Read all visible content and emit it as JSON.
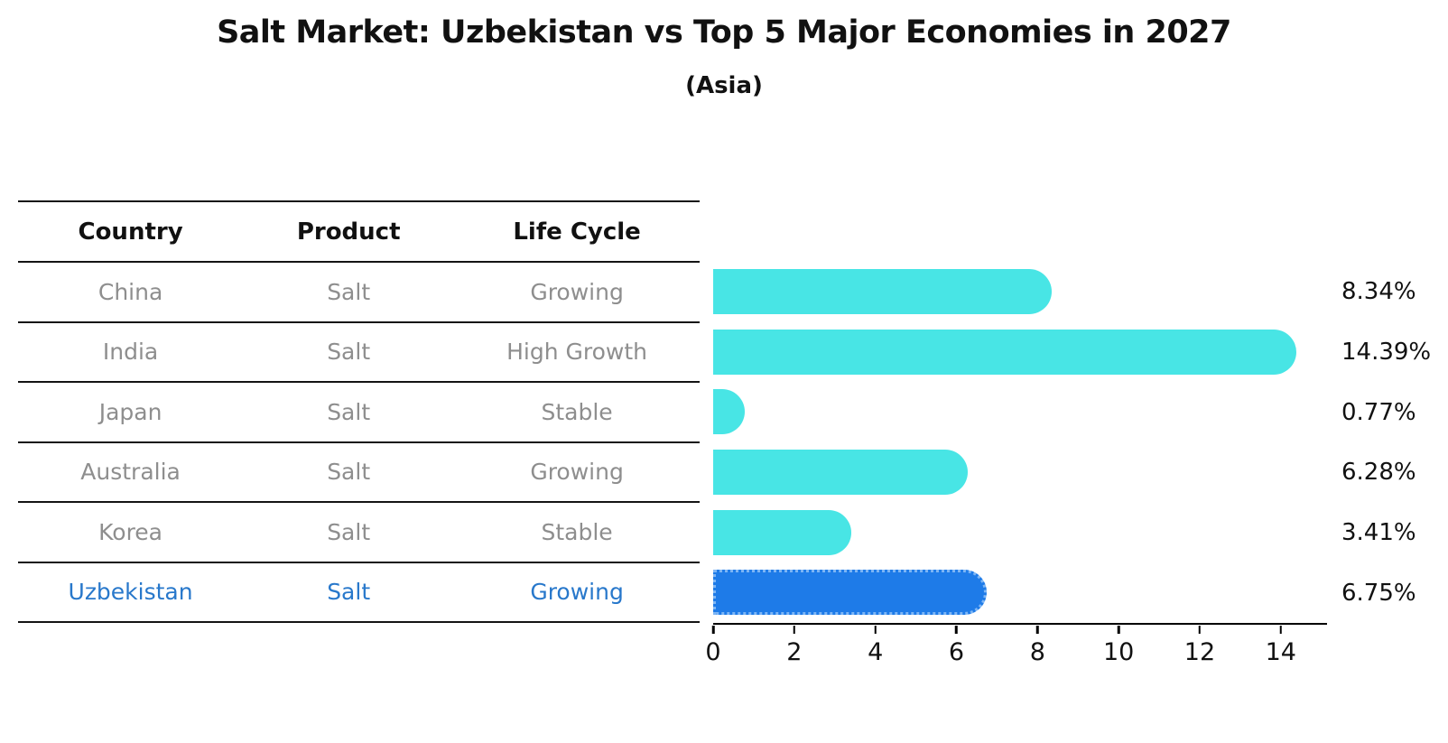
{
  "table": {
    "headers": [
      "Country",
      "Product",
      "Life Cycle"
    ],
    "rows": [
      {
        "country": "China",
        "product": "Salt",
        "life_cycle": "Growing",
        "highlight": false
      },
      {
        "country": "India",
        "product": "Salt",
        "life_cycle": "High Growth",
        "highlight": false
      },
      {
        "country": "Japan",
        "product": "Salt",
        "life_cycle": "Stable",
        "highlight": false
      },
      {
        "country": "Australia",
        "product": "Salt",
        "life_cycle": "Growing",
        "highlight": false
      },
      {
        "country": "Korea",
        "product": "Salt",
        "life_cycle": "Stable",
        "highlight": false
      },
      {
        "country": "Uzbekistan",
        "product": "Salt",
        "life_cycle": "Growing",
        "highlight": true
      }
    ]
  },
  "chart_data": {
    "type": "bar",
    "orientation": "horizontal",
    "title": "Salt Market: Uzbekistan vs Top 5 Major Economies in 2027",
    "subtitle": "(Asia)",
    "categories": [
      "China",
      "India",
      "Japan",
      "Australia",
      "Korea",
      "Uzbekistan"
    ],
    "series": [
      {
        "name": "Market growth %",
        "values": [
          8.34,
          14.39,
          0.77,
          6.28,
          3.41,
          6.75
        ]
      }
    ],
    "value_labels": [
      "8.34%",
      "14.39%",
      "0.77%",
      "6.28%",
      "3.41%",
      "6.75%"
    ],
    "highlight_index": 5,
    "xlim": [
      0,
      15.14
    ],
    "xticks": [
      0,
      2,
      4,
      6,
      8,
      10,
      12,
      14
    ],
    "xlabel": "",
    "ylabel": "",
    "grid": false,
    "legend_position": "none",
    "colors": {
      "bar": "#48E5E5",
      "highlight_bar": "#1E7BE8",
      "highlight_bar_border": "#7EB6F5",
      "row_text": "#8E8E8E",
      "highlight_text": "#2878CB",
      "axis": "#000000",
      "title_text": "#111111"
    }
  }
}
